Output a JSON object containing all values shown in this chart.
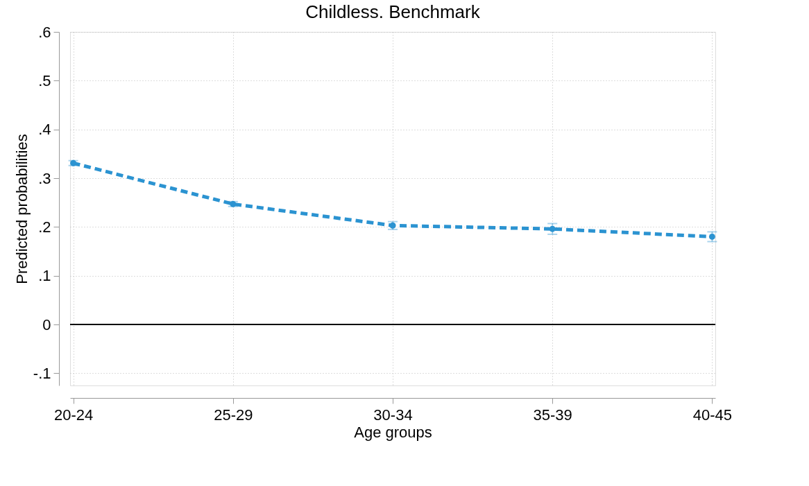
{
  "chart_data": {
    "type": "line",
    "title": "Childless. Benchmark",
    "xlabel": "Age groups",
    "ylabel": "Predicted probabilities",
    "categories": [
      "20-24",
      "25-29",
      "30-34",
      "35-39",
      "40-45"
    ],
    "series": [
      {
        "color": "#2b93d1",
        "values": [
          0.331,
          0.247,
          0.203,
          0.196,
          0.18
        ],
        "errors": [
          0.005,
          0.005,
          0.008,
          0.011,
          0.01
        ]
      }
    ],
    "ylim": [
      -0.125,
      0.6
    ],
    "yticks": [
      {
        "value": -0.1,
        "label": "-.1"
      },
      0,
      {
        "value": 0.1,
        "label": ".1"
      },
      {
        "value": 0.2,
        "label": ".2"
      },
      {
        "value": 0.3,
        "label": ".3"
      },
      {
        "value": 0.4,
        "label": ".4"
      },
      {
        "value": 0.5,
        "label": ".5"
      },
      {
        "value": 0.6,
        "label": ".6"
      }
    ],
    "ref_lines": [
      {
        "axis": "y",
        "value": 0,
        "color": "#000000"
      }
    ],
    "grid": true,
    "marker": "circle",
    "line_style": "dashed"
  }
}
